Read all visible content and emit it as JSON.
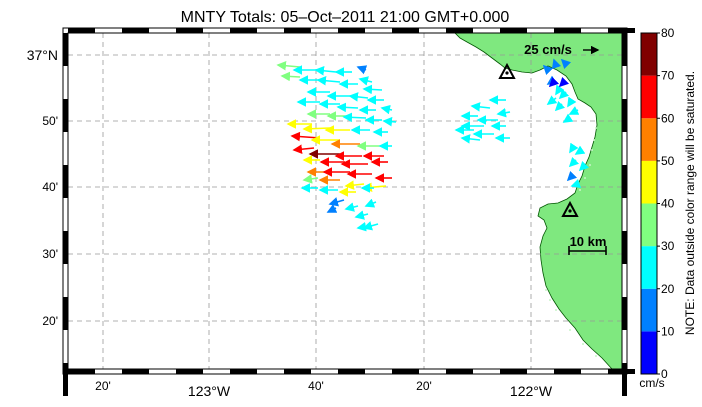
{
  "title": "MNTY Totals: 05–Oct–2011 21:00 GMT+0.000",
  "map": {
    "lon_labels": [
      "20'",
      "123°W",
      "40'",
      "20'",
      "122°W"
    ],
    "lat_labels": [
      "37°N",
      "50'",
      "40'",
      "30'",
      "20'"
    ],
    "land_color": "#7fe87f",
    "coast_color": "#006000",
    "sites": [
      "radar-site-north",
      "radar-site-south"
    ]
  },
  "reference_arrow": {
    "label": "25 cm/s",
    "value_cms": 25
  },
  "scale_bar": {
    "label": "10 km",
    "km": 10
  },
  "colorbar": {
    "ticks": [
      "0",
      "10",
      "20",
      "30",
      "40",
      "50",
      "60",
      "70",
      "80"
    ],
    "colors": [
      "#0000ff",
      "#0080ff",
      "#00ffff",
      "#80ff80",
      "#ffff00",
      "#ff8000",
      "#ff0000",
      "#800000"
    ],
    "units": "cm/s",
    "note": "NOTE: Data outside color range will be saturated."
  }
}
